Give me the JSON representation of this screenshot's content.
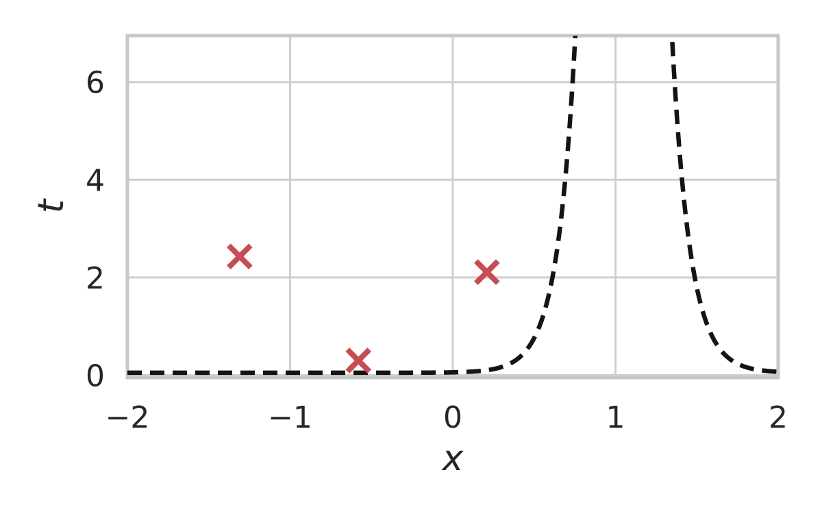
{
  "figure": {
    "background": "#ffffff"
  },
  "chart_data": {
    "type": "line",
    "title": "",
    "xlabel": "x",
    "ylabel": "t",
    "xlim": [
      -2,
      2
    ],
    "ylim": [
      -0.05,
      6.95
    ],
    "grid": true,
    "legend": "none",
    "x_ticks": {
      "values": [
        -2,
        -1,
        0,
        1,
        2
      ],
      "labels": [
        "−2",
        "−1",
        "0",
        "1",
        "2"
      ]
    },
    "y_ticks": {
      "values": [
        0,
        2,
        4,
        6
      ],
      "labels": [
        "0",
        "2",
        "4",
        "6"
      ]
    },
    "series": [
      {
        "name": "dashed-curve",
        "type": "line",
        "linestyle": "dashed",
        "color": "#141414",
        "model": {
          "kind": "exp_peak",
          "formula": "t(x) = 0.05 + 100*exp(-9*|x - 1.05|)",
          "floor": 0.05,
          "amplitude": 100,
          "rate": 9,
          "center": 1.05,
          "x_range": [
            -2,
            2
          ]
        },
        "key_points": [
          {
            "x": -2.0,
            "t": 0.05
          },
          {
            "x": 0.0,
            "t": 0.05
          },
          {
            "x": 0.38,
            "t": 0.22
          },
          {
            "x": 0.47,
            "t": 0.56
          },
          {
            "x": 0.61,
            "t": 2.0
          },
          {
            "x": 0.75,
            "t": 6.95
          },
          {
            "x": 1.35,
            "t": 6.95
          },
          {
            "x": 1.49,
            "t": 2.0
          },
          {
            "x": 1.64,
            "t": 0.55
          },
          {
            "x": 1.76,
            "t": 0.24
          },
          {
            "x": 2.0,
            "t": 0.05
          }
        ]
      },
      {
        "name": "data-points",
        "type": "scatter",
        "marker": "x",
        "color": "#c44e52",
        "points": [
          {
            "x": -1.31,
            "t": 2.43
          },
          {
            "x": -0.58,
            "t": 0.3
          },
          {
            "x": 0.21,
            "t": 2.11
          }
        ]
      }
    ],
    "colors": {
      "grid": "#cfcfcf",
      "frame": "#c8c8c8",
      "text": "#262626",
      "curve": "#141414",
      "marker": "#c44e52"
    }
  }
}
